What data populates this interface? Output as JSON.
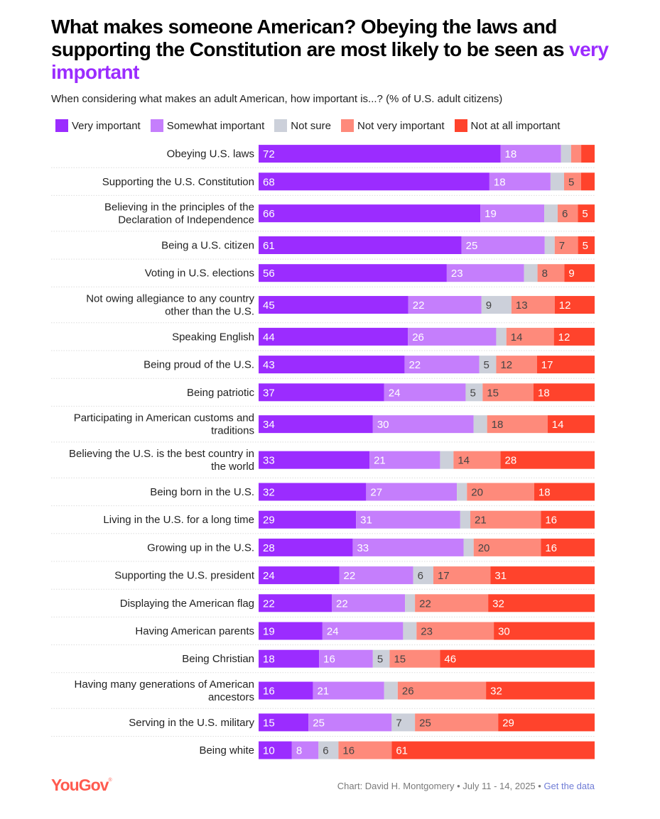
{
  "header": {
    "title_main": "What makes someone American? Obeying the laws and supporting the Constitution are most likely to be seen as ",
    "title_accent": "very important",
    "subtitle": "When considering what makes an adult American, how important is...? (% of U.S. adult citizens)"
  },
  "colors": {
    "very_important": "#9b2cff",
    "somewhat_important": "#c57efc",
    "not_sure": "#ccd0da",
    "not_very_important": "#fe8a7b",
    "not_at_all_important": "#ff432c",
    "accent": "#9b2cff",
    "brand": "#ff5a4f",
    "link": "#6f7cd6"
  },
  "chart_data": {
    "type": "bar",
    "orientation": "horizontal",
    "stacked": true,
    "title": "What makes someone American? Obeying the laws and supporting the Constitution are most likely to be seen as very important",
    "subtitle": "When considering what makes an adult American, how important is...? (% of U.S. adult citizens)",
    "xlabel": "",
    "ylabel": "",
    "xlim": [
      0,
      100
    ],
    "grid": false,
    "legend_position": "top",
    "categories": [
      "Obeying U.S. laws",
      "Supporting the U.S. Constitution",
      "Believing in the principles of the Declaration of Independence",
      "Being a U.S. citizen",
      "Voting in U.S. elections",
      "Not owing allegiance to any country other than the U.S.",
      "Speaking English",
      "Being proud of the U.S.",
      "Being patriotic",
      "Participating in American customs and traditions",
      "Believing the U.S. is the best country in the world",
      "Being born in the U.S.",
      "Living in the U.S. for a long time",
      "Growing up in the U.S.",
      "Supporting the U.S. president",
      "Displaying the American flag",
      "Having American parents",
      "Being Christian",
      "Having many generations of American ancestors",
      "Serving in the U.S. military",
      "Being white"
    ],
    "category_lines": [
      [
        "Obeying U.S. laws"
      ],
      [
        "Supporting the U.S. Constitution"
      ],
      [
        "Believing in the principles of the",
        "Declaration of Independence"
      ],
      [
        "Being a U.S. citizen"
      ],
      [
        "Voting in U.S. elections"
      ],
      [
        "Not owing allegiance to any country",
        "other than the U.S."
      ],
      [
        "Speaking English"
      ],
      [
        "Being proud of the U.S."
      ],
      [
        "Being patriotic"
      ],
      [
        "Participating in American customs and",
        "traditions"
      ],
      [
        "Believing the U.S. is the best country in",
        "the world"
      ],
      [
        "Being born in the U.S."
      ],
      [
        "Living in the U.S. for a long time"
      ],
      [
        "Growing up in the U.S."
      ],
      [
        "Supporting the U.S. president"
      ],
      [
        "Displaying the American flag"
      ],
      [
        "Having American parents"
      ],
      [
        "Being Christian"
      ],
      [
        "Having many generations of American",
        "ancestors"
      ],
      [
        "Serving in the U.S. military"
      ],
      [
        "Being white"
      ]
    ],
    "series": [
      {
        "name": "Very important",
        "key": "very_important",
        "values": [
          72,
          68,
          66,
          61,
          56,
          45,
          44,
          43,
          37,
          34,
          33,
          32,
          29,
          28,
          24,
          22,
          19,
          18,
          16,
          15,
          10
        ],
        "labeled": [
          true,
          true,
          true,
          true,
          true,
          true,
          true,
          true,
          true,
          true,
          true,
          true,
          true,
          true,
          true,
          true,
          true,
          true,
          true,
          true,
          true
        ]
      },
      {
        "name": "Somewhat important",
        "key": "somewhat_important",
        "values": [
          18,
          18,
          19,
          25,
          23,
          22,
          26,
          22,
          24,
          30,
          21,
          27,
          31,
          33,
          22,
          22,
          24,
          16,
          21,
          25,
          8
        ],
        "labeled": [
          true,
          true,
          true,
          true,
          true,
          true,
          true,
          true,
          true,
          true,
          true,
          true,
          true,
          true,
          true,
          true,
          true,
          true,
          true,
          true,
          true
        ]
      },
      {
        "name": "Not sure",
        "key": "not_sure",
        "values": [
          3,
          4,
          4,
          3,
          4,
          9,
          3,
          5,
          5,
          4,
          4,
          3,
          3,
          3,
          6,
          3,
          4,
          5,
          4,
          7,
          6
        ],
        "labeled": [
          false,
          false,
          false,
          false,
          false,
          true,
          false,
          true,
          true,
          false,
          false,
          false,
          false,
          false,
          true,
          false,
          false,
          true,
          false,
          true,
          true
        ]
      },
      {
        "name": "Not very important",
        "key": "not_very_important",
        "values": [
          3,
          5,
          6,
          7,
          8,
          13,
          14,
          12,
          15,
          18,
          14,
          20,
          21,
          20,
          17,
          22,
          23,
          15,
          26,
          25,
          16
        ],
        "labeled": [
          false,
          true,
          true,
          true,
          true,
          true,
          true,
          true,
          true,
          true,
          true,
          true,
          true,
          true,
          true,
          true,
          true,
          true,
          true,
          true,
          true
        ]
      },
      {
        "name": "Not at all important",
        "key": "not_at_all_important",
        "values": [
          4,
          4,
          5,
          5,
          9,
          12,
          12,
          17,
          18,
          14,
          28,
          18,
          16,
          16,
          31,
          32,
          30,
          46,
          32,
          29,
          61
        ],
        "labeled": [
          false,
          false,
          true,
          true,
          true,
          true,
          true,
          true,
          true,
          true,
          true,
          true,
          true,
          true,
          true,
          true,
          true,
          true,
          true,
          true,
          true
        ]
      }
    ]
  },
  "legend": [
    {
      "label": "Very important",
      "key": "very_important"
    },
    {
      "label": "Somewhat important",
      "key": "somewhat_important"
    },
    {
      "label": "Not sure",
      "key": "not_sure"
    },
    {
      "label": "Not very important",
      "key": "not_very_important"
    },
    {
      "label": "Not at all important",
      "key": "not_at_all_important"
    }
  ],
  "footer": {
    "logo": "YouGov",
    "logo_mark": "®",
    "credit": "Chart: David H. Montgomery • July 11 - 14, 2025 • ",
    "link_label": "Get the data"
  }
}
